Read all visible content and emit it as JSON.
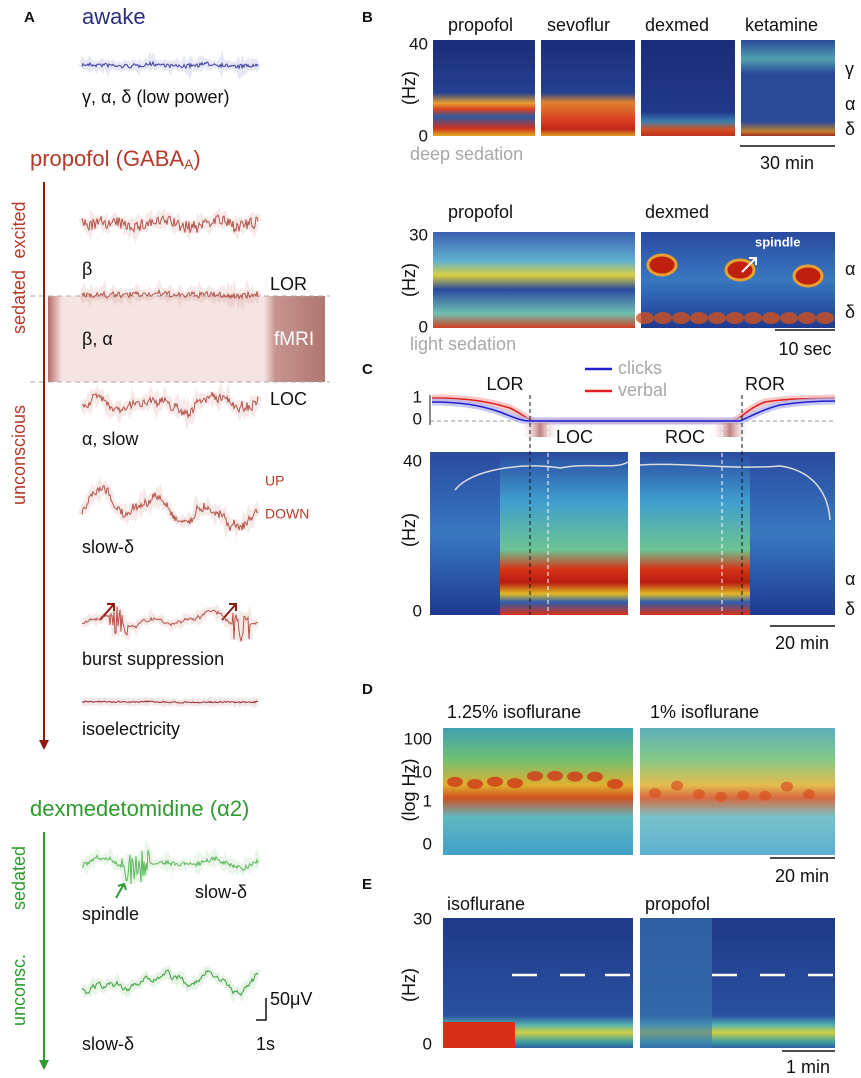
{
  "panel_a": {
    "letter": "A",
    "awake": {
      "title": "awake",
      "label": "γ, α, δ (low power)"
    },
    "propofol": {
      "title": "propofol (GABA",
      "title_sub": "A",
      "title_end": ")",
      "states": [
        "excited",
        "sedated",
        "unconscious"
      ],
      "traces": [
        "β",
        "β, α",
        "α, slow",
        "slow-δ",
        "burst suppression",
        "isoelectricity"
      ],
      "markers": {
        "lor": "LOR",
        "loc": "LOC",
        "fmri": "fMRI",
        "up": "UP",
        "down": "DOWN"
      }
    },
    "dexmed": {
      "title": "dexmedetomidine (α2)",
      "states": [
        "sedated",
        "unconsc."
      ],
      "labels": [
        "spindle",
        "slow-δ",
        "slow-δ"
      ]
    },
    "scale": {
      "voltage": "50μV",
      "time": "1s"
    }
  },
  "panel_b": {
    "letter": "B",
    "top": {
      "headers": [
        "propofol",
        "sevoflur",
        "dexmed",
        "ketamine"
      ],
      "ylabel": "(Hz)",
      "yticks": [
        40,
        0
      ],
      "bands": [
        "γ",
        "α",
        "δ"
      ],
      "condition": "deep sedation",
      "scale": "30 min"
    },
    "bottom": {
      "headers": [
        "propofol",
        "dexmed"
      ],
      "ylabel": "(Hz)",
      "yticks": [
        30,
        0
      ],
      "annotation": "spindle",
      "bands": [
        "α",
        "δ"
      ],
      "condition": "light sedation",
      "scale": "10 sec"
    }
  },
  "panel_c": {
    "letter": "C",
    "events": {
      "lor": "LOR",
      "ror": "ROR",
      "loc": "LOC",
      "roc": "ROC"
    },
    "legend": [
      "clicks",
      "verbal"
    ],
    "yticks": [
      1,
      0
    ],
    "spectrogram": {
      "ylabel": "(Hz)",
      "yticks": [
        40,
        0
      ],
      "bands": [
        "α",
        "δ"
      ],
      "scale": "20 min"
    }
  },
  "panel_d": {
    "letter": "D",
    "headers": [
      "1.25% isoflurane",
      "1% isoflurane"
    ],
    "ylabel": "(log Hz)",
    "yticks": [
      100,
      10,
      1,
      0
    ],
    "scale": "20 min"
  },
  "panel_e": {
    "letter": "E",
    "headers": [
      "isoflurane",
      "propofol"
    ],
    "ylabel": "(Hz)",
    "yticks": [
      30,
      0
    ],
    "scale": "1 min"
  }
}
